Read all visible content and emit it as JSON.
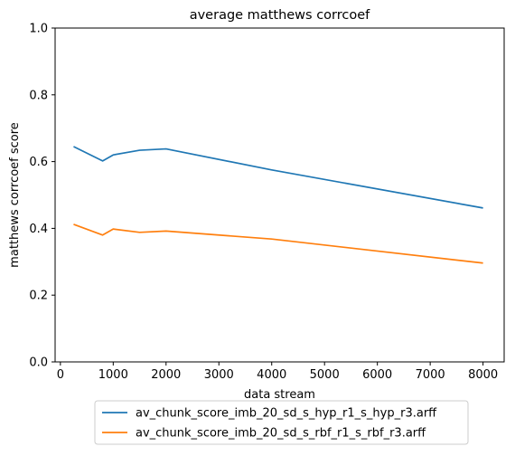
{
  "chart_data": {
    "type": "line",
    "title": "average matthews corrcoef",
    "xlabel": "data stream",
    "ylabel": "matthews corrcoef score",
    "xlim": [
      -100,
      8400
    ],
    "ylim": [
      0.0,
      1.0
    ],
    "xticks": [
      0,
      1000,
      2000,
      3000,
      4000,
      5000,
      6000,
      7000,
      8000
    ],
    "xtick_labels": [
      "0",
      "1000",
      "2000",
      "3000",
      "4000",
      "5000",
      "6000",
      "7000",
      "8000"
    ],
    "yticks": [
      0.0,
      0.2,
      0.4,
      0.6,
      0.8,
      1.0
    ],
    "ytick_labels": [
      "0.0",
      "0.2",
      "0.4",
      "0.6",
      "0.8",
      "1.0"
    ],
    "grid": false,
    "legend_position": "bottom-center",
    "series": [
      {
        "name": "av_chunk_score_imb_20_sd_s_hyp_r1_s_hyp_r3.arff",
        "color": "#1f77b4",
        "x": [
          250,
          800,
          1000,
          1500,
          2000,
          4000,
          8000
        ],
        "y": [
          0.645,
          0.602,
          0.62,
          0.634,
          0.638,
          0.575,
          0.461
        ]
      },
      {
        "name": "av_chunk_score_imb_20_sd_s_rbf_r1_s_rbf_r3.arff",
        "color": "#ff7f0e",
        "x": [
          250,
          800,
          1000,
          1500,
          2000,
          4000,
          8000
        ],
        "y": [
          0.412,
          0.38,
          0.398,
          0.388,
          0.392,
          0.368,
          0.296
        ]
      }
    ]
  }
}
